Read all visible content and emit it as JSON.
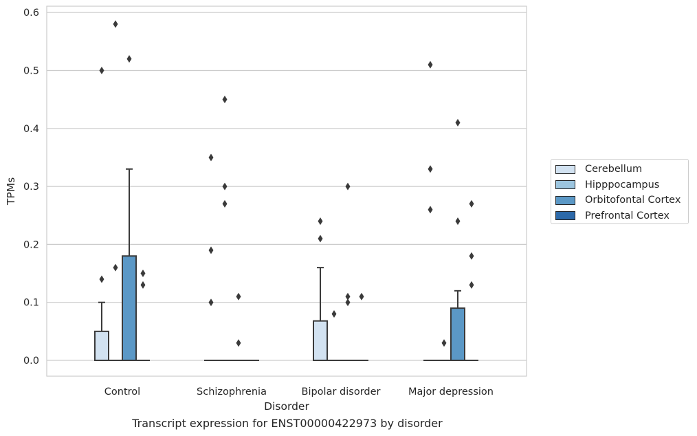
{
  "chart_data": {
    "type": "box",
    "xlabel": "Disorder",
    "ylabel": "TPMs",
    "caption": "Transcript expression for ENST00000422973 by disorder",
    "ylim": [
      -0.03,
      0.61
    ],
    "yticks": [
      "0.0",
      "0.1",
      "0.2",
      "0.3",
      "0.4",
      "0.5",
      "0.6"
    ],
    "grid": "horizontal",
    "legend_position": "right",
    "categories": [
      "Control",
      "Schizophrenia",
      "Bipolar disorder",
      "Major depression"
    ],
    "series": [
      {
        "name": "Cerebellum",
        "color": "#d2e2f1"
      },
      {
        "name": "Hipppocampus",
        "color": "#9cc5df"
      },
      {
        "name": "Orbitofontal Cortex",
        "color": "#5b98c6"
      },
      {
        "name": "Prefrontal Cortex",
        "color": "#2c69a9"
      }
    ],
    "boxes": [
      {
        "category": "Control",
        "series": "Cerebellum",
        "q1": 0,
        "median": 0,
        "q3": 0.05,
        "whisker_low": 0,
        "whisker_high": 0.1,
        "outliers": [
          0.14,
          0.5
        ]
      },
      {
        "category": "Control",
        "series": "Hipppocampus",
        "q1": 0,
        "median": 0,
        "q3": 0,
        "whisker_low": 0,
        "whisker_high": 0,
        "outliers": [
          0.16,
          0.58
        ]
      },
      {
        "category": "Control",
        "series": "Orbitofontal Cortex",
        "q1": 0,
        "median": 0,
        "q3": 0.18,
        "whisker_low": 0,
        "whisker_high": 0.33,
        "outliers": [
          0.52
        ]
      },
      {
        "category": "Control",
        "series": "Prefrontal Cortex",
        "q1": 0,
        "median": 0,
        "q3": 0,
        "whisker_low": 0,
        "whisker_high": 0,
        "outliers": [
          0.13,
          0.15
        ]
      },
      {
        "category": "Schizophrenia",
        "series": "Cerebellum",
        "q1": 0,
        "median": 0,
        "q3": 0,
        "whisker_low": 0,
        "whisker_high": 0,
        "outliers": [
          0.1,
          0.19,
          0.35
        ]
      },
      {
        "category": "Schizophrenia",
        "series": "Hipppocampus",
        "q1": 0,
        "median": 0,
        "q3": 0,
        "whisker_low": 0,
        "whisker_high": 0,
        "outliers": [
          0.27,
          0.3,
          0.45
        ]
      },
      {
        "category": "Schizophrenia",
        "series": "Orbitofontal Cortex",
        "q1": 0,
        "median": 0,
        "q3": 0,
        "whisker_low": 0,
        "whisker_high": 0,
        "outliers": [
          0.03,
          0.11
        ]
      },
      {
        "category": "Schizophrenia",
        "series": "Prefrontal Cortex",
        "q1": 0,
        "median": 0,
        "q3": 0,
        "whisker_low": 0,
        "whisker_high": 0,
        "outliers": []
      },
      {
        "category": "Bipolar disorder",
        "series": "Cerebellum",
        "q1": 0,
        "median": 0,
        "q3": 0.068,
        "whisker_low": 0,
        "whisker_high": 0.16,
        "outliers": [
          0.21,
          0.24
        ]
      },
      {
        "category": "Bipolar disorder",
        "series": "Hipppocampus",
        "q1": 0,
        "median": 0,
        "q3": 0,
        "whisker_low": 0,
        "whisker_high": 0,
        "outliers": [
          0.08
        ]
      },
      {
        "category": "Bipolar disorder",
        "series": "Orbitofontal Cortex",
        "q1": 0,
        "median": 0,
        "q3": 0,
        "whisker_low": 0,
        "whisker_high": 0,
        "outliers": [
          0.1,
          0.11,
          0.3
        ]
      },
      {
        "category": "Bipolar disorder",
        "series": "Prefrontal Cortex",
        "q1": 0,
        "median": 0,
        "q3": 0,
        "whisker_low": 0,
        "whisker_high": 0,
        "outliers": [
          0.11
        ]
      },
      {
        "category": "Major depression",
        "series": "Cerebellum",
        "q1": 0,
        "median": 0,
        "q3": 0,
        "whisker_low": 0,
        "whisker_high": 0,
        "outliers": [
          0.26,
          0.33,
          0.51
        ]
      },
      {
        "category": "Major depression",
        "series": "Hipppocampus",
        "q1": 0,
        "median": 0,
        "q3": 0,
        "whisker_low": 0,
        "whisker_high": 0,
        "outliers": [
          0.03
        ]
      },
      {
        "category": "Major depression",
        "series": "Orbitofontal Cortex",
        "q1": 0,
        "median": 0,
        "q3": 0.09,
        "whisker_low": 0,
        "whisker_high": 0.12,
        "outliers": [
          0.24,
          0.41
        ]
      },
      {
        "category": "Major depression",
        "series": "Prefrontal Cortex",
        "q1": 0,
        "median": 0,
        "q3": 0,
        "whisker_low": 0,
        "whisker_high": 0,
        "outliers": [
          0.13,
          0.18,
          0.27
        ]
      }
    ]
  }
}
